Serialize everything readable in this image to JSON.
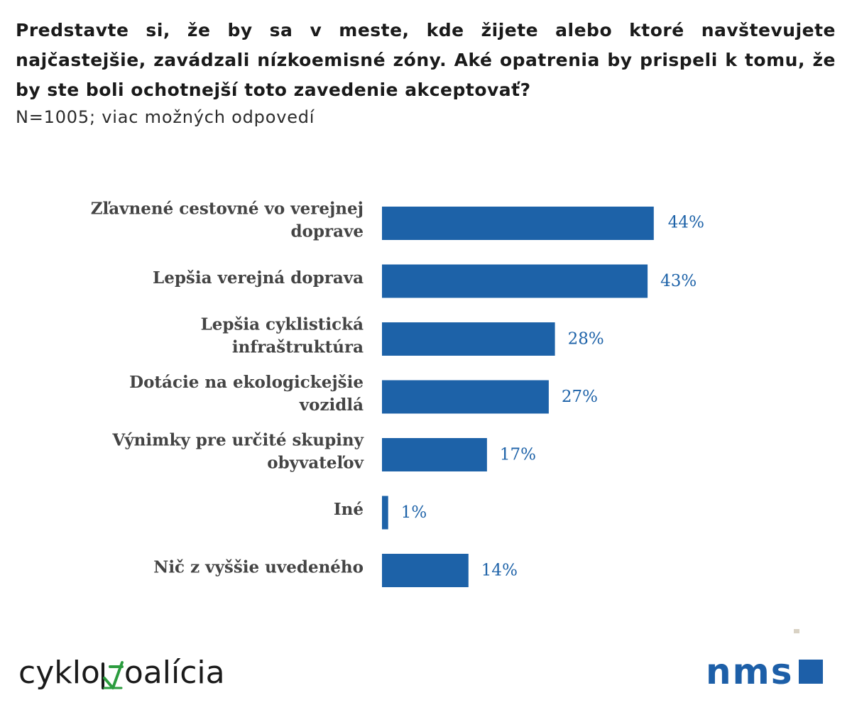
{
  "header": {
    "question": "Predstavte si, že by sa v meste, kde žijete alebo ktoré navštevujete najčastejšie, zavádzali nízkoemisné zóny. Aké opatrenia by prispeli k tomu, že by ste boli ochotnejší toto zavedenie akceptovať?",
    "sample_note": "N=1005; viac možných odpovedí"
  },
  "chart_data": {
    "type": "bar",
    "orientation": "horizontal",
    "categories": [
      [
        "Zľavnené cestovné vo verejnej",
        "doprave"
      ],
      [
        "Lepšia verejná doprava"
      ],
      [
        "Lepšia cyklistická",
        "infraštruktúra"
      ],
      [
        "Dotácie na ekologickejšie",
        "vozidlá"
      ],
      [
        "Výnimky pre určité skupiny",
        "obyvateľov"
      ],
      [
        "Iné"
      ],
      [
        "Nič z vyššie uvedeného"
      ]
    ],
    "values": [
      44,
      43,
      28,
      27,
      17,
      1,
      14
    ],
    "value_labels": [
      "44%",
      "43%",
      "28%",
      "27%",
      "17%",
      "1%",
      "14%"
    ],
    "unit": "%",
    "xlim": [
      0,
      50
    ],
    "grid": false,
    "bar_color": "#1d62a8",
    "value_label_color": "#1d62a8",
    "category_label_color": "#444444"
  },
  "logos": {
    "left": {
      "text_before": "cyklo",
      "text_after": "oalícia",
      "accent_color": "#2c9c3f"
    },
    "right": {
      "text": "nms",
      "color": "#1d5fa8"
    }
  }
}
